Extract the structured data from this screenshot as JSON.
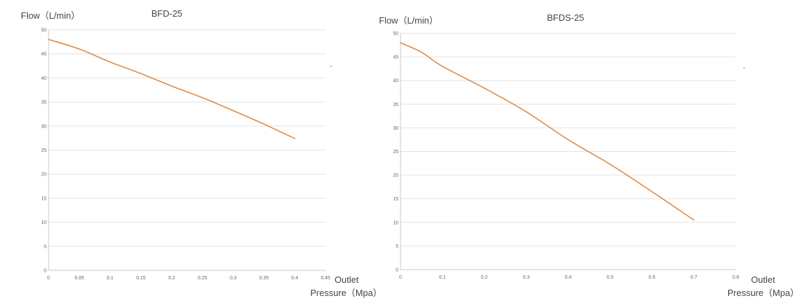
{
  "colors": {
    "line": "#e08a44",
    "grid": "#e2e2e2",
    "text": "#444444"
  },
  "chart_data": [
    {
      "type": "line",
      "title": "BFD-25",
      "ylabel": "Flow（L/min）",
      "xlabel_line1": "Outlet",
      "xlabel_line2": "Pressure（Mpa）",
      "xlim": [
        0,
        0.45
      ],
      "ylim": [
        0,
        50
      ],
      "xticks": [
        "0",
        "0.05",
        "0.1",
        "0.15",
        "0.2",
        "0.25",
        "0.3",
        "0.35",
        "0.4",
        "0.45"
      ],
      "yticks": [
        "0",
        "5",
        "10",
        "15",
        "20",
        "25",
        "30",
        "35",
        "40",
        "45",
        "50"
      ],
      "grid": true,
      "series": [
        {
          "x": [
            0,
            0.05,
            0.1,
            0.15,
            0.2,
            0.25,
            0.3,
            0.35,
            0.4
          ],
          "y": [
            48,
            46,
            43.3,
            40.9,
            38.3,
            35.9,
            33.2,
            30.4,
            27.4
          ]
        }
      ]
    },
    {
      "type": "line",
      "title": "BFDS-25",
      "ylabel": "Flow（L/min）",
      "xlabel_line1": "Outlet",
      "xlabel_line2": "Pressure（Mpa）",
      "xlim": [
        0,
        0.8
      ],
      "ylim": [
        0,
        50
      ],
      "xticks": [
        "0",
        "0.1",
        "0.2",
        "0.3",
        "0.4",
        "0.5",
        "0.6",
        "0.7",
        "0.8"
      ],
      "yticks": [
        "0",
        "5",
        "10",
        "15",
        "20",
        "25",
        "30",
        "35",
        "40",
        "45",
        "50"
      ],
      "grid": true,
      "series": [
        {
          "x": [
            0,
            0.05,
            0.1,
            0.2,
            0.3,
            0.4,
            0.5,
            0.6,
            0.7
          ],
          "y": [
            48,
            46,
            43,
            38.4,
            33.4,
            27.5,
            22.3,
            16.5,
            10.5
          ]
        }
      ]
    }
  ]
}
